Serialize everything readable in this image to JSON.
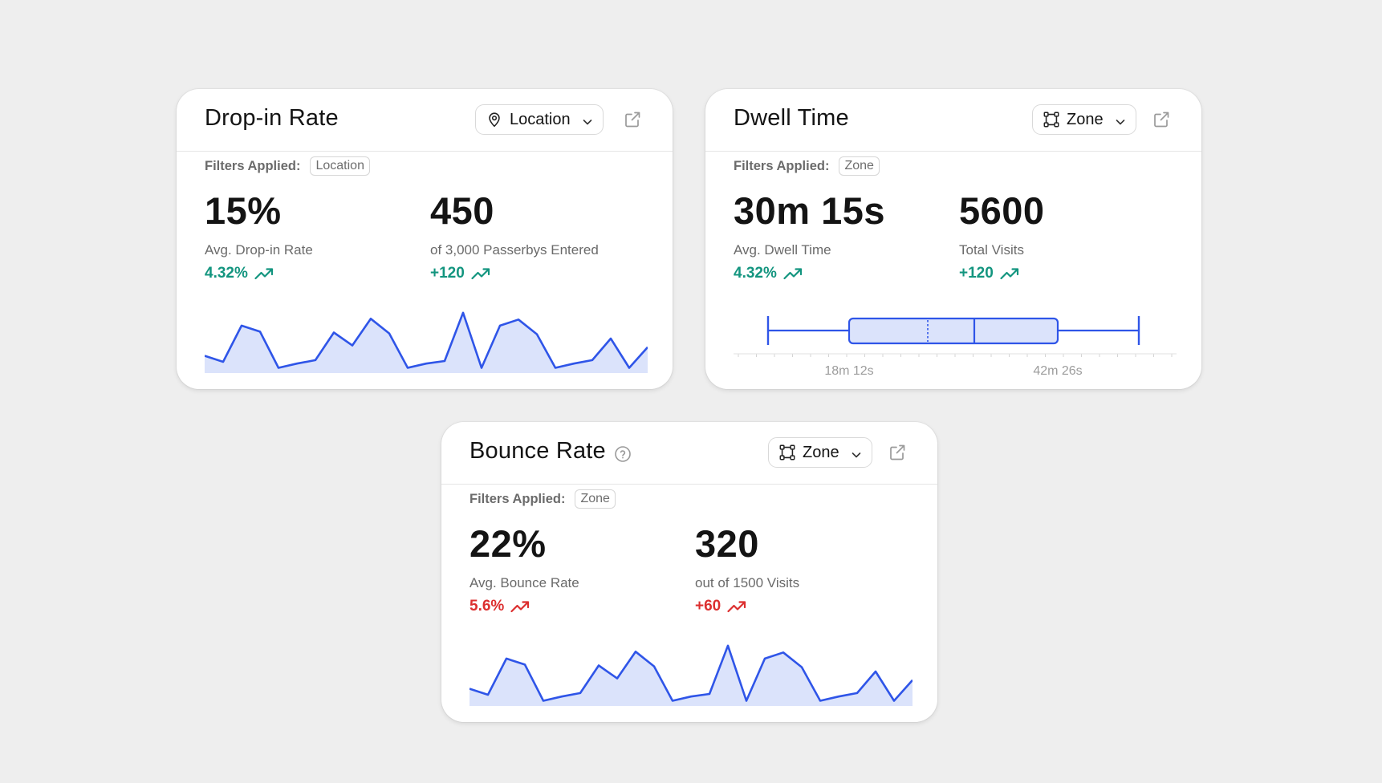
{
  "cards": {
    "dropin": {
      "title": "Drop-in Rate",
      "dropdown": {
        "label": "Location",
        "icon": "location-pin-icon"
      },
      "filters_label": "Filters Applied:",
      "filter_chip": "Location",
      "metric1": {
        "value": "15%",
        "label": "Avg. Drop-in Rate",
        "delta": "4.32%"
      },
      "metric2": {
        "value": "450",
        "label": "of 3,000 Passerbys Entered",
        "delta": "+120"
      },
      "delta_color": "#13957f"
    },
    "dwell": {
      "title": "Dwell Time",
      "dropdown": {
        "label": "Zone",
        "icon": "zone-polygon-icon"
      },
      "filters_label": "Filters Applied:",
      "filter_chip": "Zone",
      "metric1": {
        "value": "30m 15s",
        "label": "Avg. Dwell Time",
        "delta": "4.32%"
      },
      "metric2": {
        "value": "5600",
        "label": "Total Visits",
        "delta": "+120"
      },
      "delta_color": "#13957f"
    },
    "bounce": {
      "title": "Bounce Rate",
      "dropdown": {
        "label": "Zone",
        "icon": "zone-polygon-icon"
      },
      "filters_label": "Filters Applied:",
      "filter_chip": "Zone",
      "metric1": {
        "value": "22%",
        "label": "Avg. Bounce Rate",
        "delta": "5.6%"
      },
      "metric2": {
        "value": "320",
        "label": "out of 1500 Visits",
        "delta": "+60"
      },
      "delta_color": "#dc2f2f"
    }
  },
  "colors": {
    "accent": "#2f55e8",
    "fill": "#dbe3fb",
    "positive": "#13957f",
    "negative": "#dc2f2f"
  },
  "chart_data": [
    {
      "type": "area",
      "values": [
        20,
        13,
        55,
        48,
        6,
        11,
        15,
        47,
        32,
        63,
        46,
        6,
        11,
        14,
        70,
        6,
        55,
        62,
        45,
        6,
        11,
        15,
        40,
        6,
        30
      ],
      "ylim": [
        0,
        80
      ]
    },
    {
      "type": "boxplot",
      "tick_labels": [
        "18m 12s",
        "42m 26s"
      ],
      "median_marker": "dashed"
    },
    {
      "type": "area",
      "values": [
        20,
        13,
        55,
        48,
        6,
        11,
        15,
        47,
        32,
        63,
        46,
        6,
        11,
        14,
        70,
        6,
        55,
        62,
        45,
        6,
        11,
        15,
        40,
        6,
        30
      ],
      "ylim": [
        0,
        80
      ]
    }
  ]
}
